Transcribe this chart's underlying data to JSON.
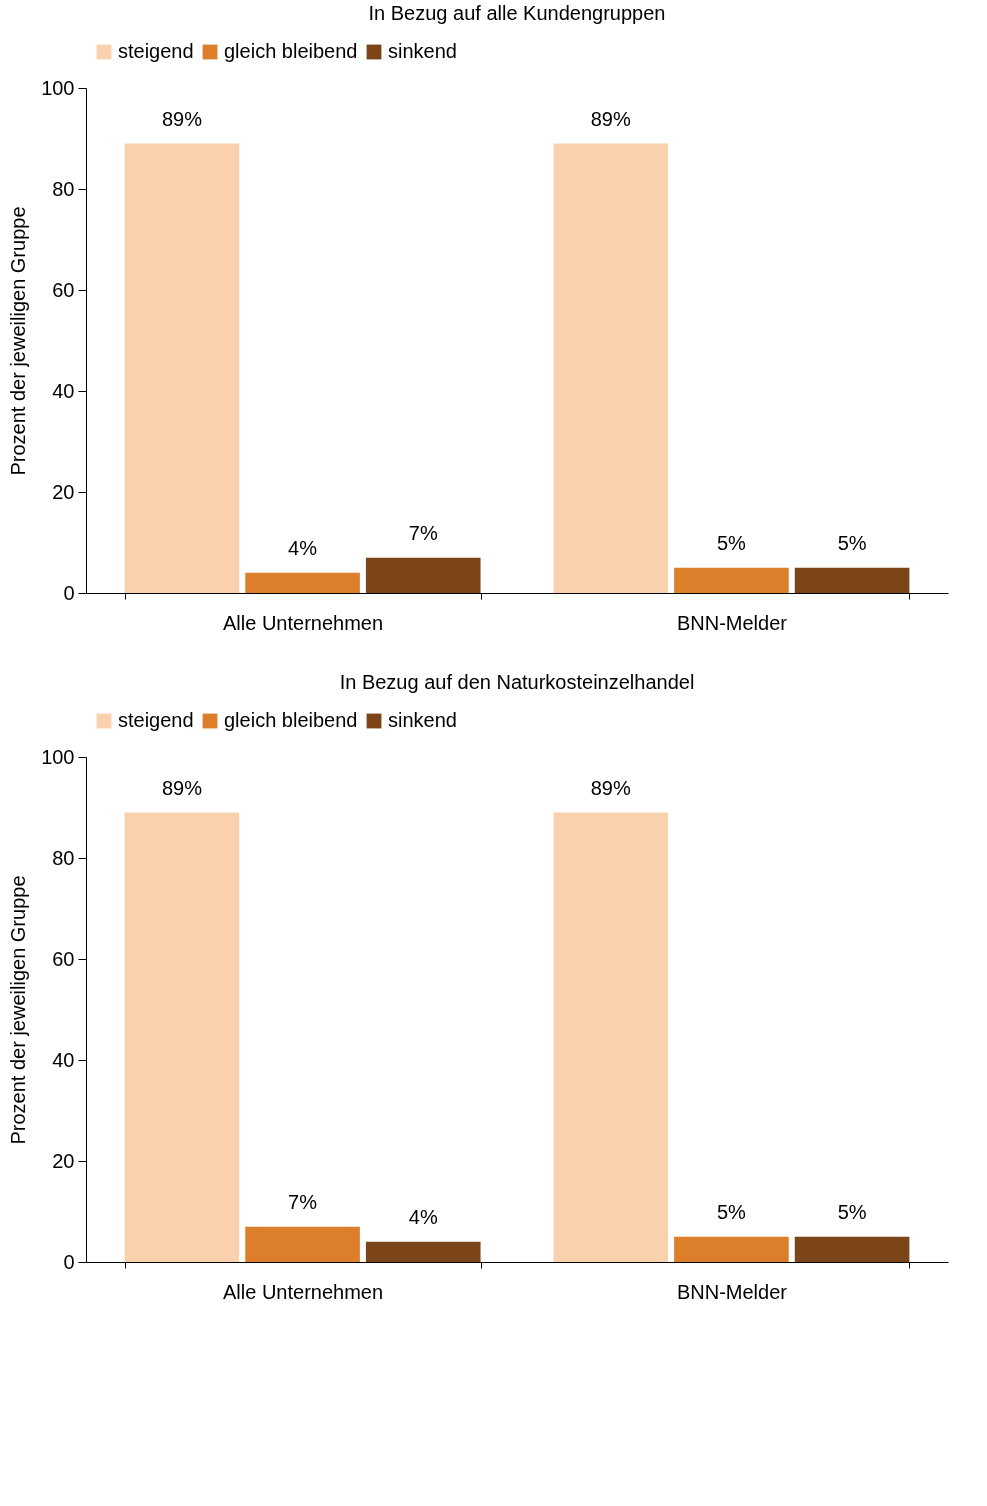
{
  "chart_data": [
    {
      "type": "bar",
      "title": "In Bezug auf alle Kundengruppen",
      "ylabel": "Prozent der jeweiligen Gruppe",
      "categories": [
        "Alle Unternehmen",
        "BNN-Melder"
      ],
      "ylim": [
        0,
        100
      ],
      "yticks": [
        0,
        20,
        40,
        60,
        80,
        100
      ],
      "grid": false,
      "legend": "top",
      "series": [
        {
          "name": "steigend",
          "color": "#f9d1ac",
          "values": [
            89,
            89
          ],
          "value_labels": [
            "89%",
            "89%"
          ]
        },
        {
          "name": "gleich bleibend",
          "color": "#dd7e2b",
          "values": [
            4,
            5
          ],
          "value_labels": [
            "4%",
            "5%"
          ]
        },
        {
          "name": "sinkend",
          "color": "#7b4519",
          "values": [
            7,
            5
          ],
          "value_labels": [
            "7%",
            "5%"
          ]
        }
      ]
    },
    {
      "type": "bar",
      "title": "In Bezug auf den Naturkosteinzelhandel",
      "ylabel": "Prozent der jeweiligen Gruppe",
      "categories": [
        "Alle Unternehmen",
        "BNN-Melder"
      ],
      "ylim": [
        0,
        100
      ],
      "yticks": [
        0,
        20,
        40,
        60,
        80,
        100
      ],
      "grid": false,
      "legend": "top",
      "series": [
        {
          "name": "steigend",
          "color": "#f9d1ac",
          "values": [
            89,
            89
          ],
          "value_labels": [
            "89%",
            "89%"
          ]
        },
        {
          "name": "gleich bleibend",
          "color": "#dd7e2b",
          "values": [
            7,
            5
          ],
          "value_labels": [
            "7%",
            "5%"
          ]
        },
        {
          "name": "sinkend",
          "color": "#7b4519",
          "values": [
            4,
            5
          ],
          "value_labels": [
            "4%",
            "5%"
          ]
        }
      ]
    }
  ]
}
